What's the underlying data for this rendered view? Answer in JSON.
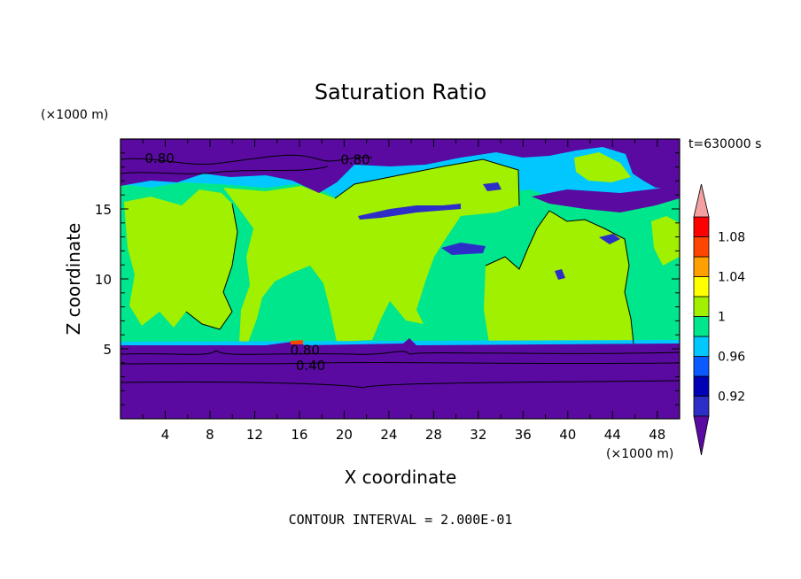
{
  "chart_data": {
    "type": "heatmap",
    "title": "Saturation Ratio",
    "xlabel": "X coordinate",
    "ylabel": "Z coordinate",
    "x_unit": "(×1000 m)",
    "y_unit": "(×1000 m)",
    "time_label": "t=630000 s",
    "footer": "CONTOUR INTERVAL = 2.000E-01",
    "xlim": [
      0,
      50
    ],
    "ylim": [
      0,
      20
    ],
    "x_ticks": [
      4,
      8,
      12,
      16,
      20,
      24,
      28,
      32,
      36,
      40,
      44,
      48
    ],
    "y_ticks": [
      5,
      10,
      15
    ],
    "colorbar": {
      "bins": [
        {
          "color": "#5a0aa0",
          "range": [
            0,
            0.9
          ],
          "extend": "min"
        },
        {
          "color": "#2d2dc8",
          "range": [
            0.9,
            0.92
          ]
        },
        {
          "color": "#0000b4",
          "range": [
            0.92,
            0.94
          ]
        },
        {
          "color": "#0a5aff",
          "range": [
            0.94,
            0.96
          ]
        },
        {
          "color": "#00c8ff",
          "range": [
            0.96,
            0.98
          ]
        },
        {
          "color": "#00e68c",
          "range": [
            0.98,
            1.0
          ]
        },
        {
          "color": "#a0f000",
          "range": [
            1.0,
            1.02
          ]
        },
        {
          "color": "#ffff00",
          "range": [
            1.02,
            1.04
          ]
        },
        {
          "color": "#ffa000",
          "range": [
            1.04,
            1.06
          ]
        },
        {
          "color": "#ff4600",
          "range": [
            1.06,
            1.08
          ]
        },
        {
          "color": "#ff0000",
          "range": [
            1.08,
            1.1
          ]
        },
        {
          "color": "#f5a0a0",
          "range": [
            1.1,
            1.2
          ],
          "extend": "max"
        }
      ],
      "labels": [
        "1.08",
        "1.04",
        "1",
        "0.96",
        "0.92"
      ],
      "label_values": [
        1.08,
        1.04,
        1.0,
        0.96,
        0.92
      ]
    },
    "contour_labels": [
      {
        "text": "0.80",
        "x": 3.5,
        "z": 18.6
      },
      {
        "text": "0.80",
        "x": 21.0,
        "z": 18.5
      },
      {
        "text": "0.80",
        "x": 16.5,
        "z": 4.9
      },
      {
        "text": "0.40",
        "x": 17.0,
        "z": 3.8
      }
    ],
    "regions": [
      {
        "name": "upper-dry-layer",
        "level": "<0.90",
        "color": "#5a0aa0"
      },
      {
        "name": "near-saturated-midlevel",
        "level": "0.98-1.00",
        "color": "#00e68c"
      },
      {
        "name": "supersaturated-patches",
        "level": "1.00-1.02",
        "color": "#a0f000"
      },
      {
        "name": "lower-dry-layer",
        "level": "<0.90",
        "color": "#5a0aa0"
      }
    ]
  }
}
